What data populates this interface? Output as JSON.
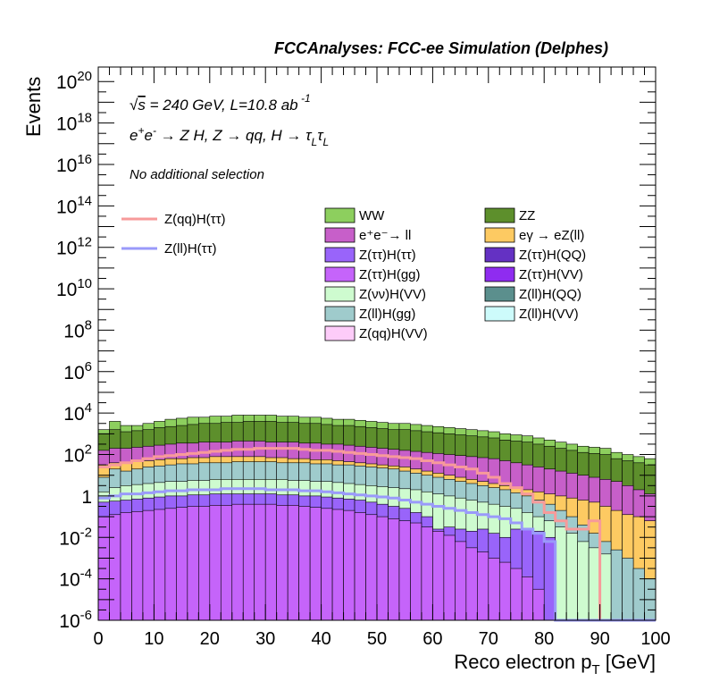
{
  "header": {
    "experiment": "FCCAnalyses: FCC-ee Simulation (Delphes)"
  },
  "annotations": {
    "energy": "√s = 240 GeV, L=10.8 ab⁻¹",
    "process": "e⁺e⁻ → Z H, Z → qq, H → τLτL",
    "selection": "No additional selection"
  },
  "colors": {
    "WW": "#8dcf5e",
    "ZZ": "#5d8f2c",
    "ee_ll": "#c75fc9",
    "egamma": "#fdca62",
    "Ztautau_Htautau": "#9964fa",
    "Ztautau_HQQ": "#6431c3",
    "Ztautau_Hgg": "#c564fa",
    "Ztautau_HVV": "#8f2cf0",
    "Znunu_HVV": "#cefbcf",
    "Zll_HQQ": "#5b8f8d",
    "Zll_Hgg": "#9fcbcc",
    "Zll_HVV": "#cdfbfb",
    "Zqq_HVV": "#fdccf9",
    "sig_qq": "#f79a9a",
    "sig_ll": "#9a9afa"
  },
  "chart_data": {
    "type": "area",
    "title": "FCCAnalyses: FCC-ee Simulation (Delphes)",
    "xlabel": "Reco electron p_T [GeV]",
    "ylabel": "Events",
    "xlim": [
      0,
      100
    ],
    "ylim_log10": [
      -6,
      20.7
    ],
    "log_y": true,
    "x_ticks": [
      "0",
      "10",
      "20",
      "30",
      "40",
      "50",
      "60",
      "70",
      "80",
      "90",
      "100"
    ],
    "y_ticks": [
      "10^-6",
      "10^-4",
      "10^-2",
      "1",
      "10^2",
      "10^4",
      "10^6",
      "10^8",
      "10^10",
      "10^12",
      "10^14",
      "10^16",
      "10^18",
      "10^20"
    ],
    "bin_edges": [
      0,
      2,
      4,
      6,
      8,
      10,
      12,
      14,
      16,
      18,
      20,
      22,
      24,
      26,
      28,
      30,
      32,
      34,
      36,
      38,
      40,
      42,
      44,
      46,
      48,
      50,
      52,
      54,
      56,
      58,
      60,
      62,
      64,
      66,
      68,
      70,
      72,
      74,
      76,
      78,
      80,
      82,
      84,
      86,
      88,
      90,
      92,
      94,
      96,
      98,
      100
    ],
    "stacked_total_log10": [
      [
        3.2,
        3.6,
        3.4,
        3.4,
        3.5,
        3.6,
        3.7,
        3.75,
        3.8,
        3.8,
        3.85,
        3.85,
        3.9,
        3.9,
        3.9,
        3.9,
        3.85,
        3.85,
        3.8,
        3.8,
        3.75,
        3.7,
        3.7,
        3.65,
        3.6,
        3.55,
        3.5,
        3.5,
        3.45,
        3.4,
        3.35,
        3.3,
        3.25,
        3.2,
        3.15,
        3.1,
        3.0,
        2.95,
        2.9,
        2.8,
        2.7,
        2.6,
        2.5,
        2.4,
        2.35,
        2.3,
        2.1,
        2.0,
        1.9,
        1.8
      ]
    ],
    "stack_order": [
      "Z(qq)H(VV)",
      "Z(ll)H(VV)",
      "Z(ll)H(gg)",
      "Z(ll)H(QQ)",
      "Z(νν)H(VV)",
      "Z(ττ)H(VV)",
      "Z(ττ)H(gg)",
      "Z(ττ)H(QQ)",
      "Z(ττ)H(ττ)",
      "eγ → eZ(ll)",
      "e⁺e⁻→ ll",
      "ZZ",
      "WW"
    ],
    "series": [
      {
        "name": "Z(ττ)H(gg)",
        "role": "stack",
        "log10": [
          -1.0,
          -0.9,
          -0.8,
          -0.75,
          -0.7,
          -0.65,
          -0.6,
          -0.55,
          -0.5,
          -0.5,
          -0.45,
          -0.45,
          -0.4,
          -0.4,
          -0.4,
          -0.4,
          -0.45,
          -0.45,
          -0.5,
          -0.55,
          -0.6,
          -0.65,
          -0.7,
          -0.8,
          -0.9,
          -1.0,
          -1.1,
          -1.2,
          -1.3,
          -1.5,
          -1.7,
          -1.9,
          -2.2,
          -2.5,
          -2.7,
          -3.0,
          -3.2,
          -3.5,
          -3.9,
          -4.5,
          -6,
          -6,
          -6,
          -6,
          -6,
          -6,
          -6,
          -6,
          -6,
          -6
        ]
      },
      {
        "name": "Z(ττ)H(ττ)",
        "role": "stack",
        "log10": [
          -0.3,
          -0.25,
          -0.2,
          -0.15,
          -0.1,
          -0.05,
          0.0,
          0.0,
          0.05,
          0.05,
          0.1,
          0.1,
          0.1,
          0.1,
          0.1,
          0.1,
          0.05,
          0.05,
          0.0,
          0.0,
          -0.05,
          -0.1,
          -0.15,
          -0.2,
          -0.3,
          -0.4,
          -0.5,
          -0.6,
          -0.8,
          -1.0,
          -1.6,
          -1.5,
          -1.6,
          -1.7,
          -1.6,
          -1.8,
          -2.0,
          -1.6,
          -1.6,
          -1.7,
          -2.0,
          -6,
          -6,
          -6,
          -6,
          -6,
          -6,
          -6,
          -6,
          -6
        ]
      },
      {
        "name": "Z(νν)H(VV)",
        "role": "stack",
        "log10": [
          0.2,
          0.4,
          0.5,
          0.55,
          0.6,
          0.65,
          0.7,
          0.7,
          0.75,
          0.75,
          0.8,
          0.8,
          0.8,
          0.8,
          0.8,
          0.8,
          0.8,
          0.75,
          0.75,
          0.7,
          0.7,
          0.65,
          0.6,
          0.55,
          0.5,
          0.45,
          0.4,
          0.35,
          0.3,
          0.2,
          0.1,
          0.0,
          -0.1,
          -0.2,
          -0.3,
          -0.4,
          -0.5,
          -0.6,
          -0.8,
          -1.0,
          -1.2,
          -1.5,
          -1.8,
          -2.2,
          -2.5,
          -2.8,
          -6,
          -6,
          -6,
          -6
        ]
      },
      {
        "name": "Z(ll)H(gg)",
        "role": "stack",
        "log10": [
          0.9,
          1.3,
          1.2,
          1.3,
          1.4,
          1.45,
          1.5,
          1.55,
          1.55,
          1.6,
          1.6,
          1.6,
          1.65,
          1.65,
          1.65,
          1.65,
          1.6,
          1.6,
          1.6,
          1.55,
          1.55,
          1.5,
          1.5,
          1.45,
          1.4,
          1.35,
          1.3,
          1.2,
          1.1,
          1.0,
          0.9,
          0.8,
          0.7,
          0.6,
          0.5,
          0.4,
          0.3,
          0.15,
          0.0,
          -0.2,
          -0.4,
          -0.7,
          -1.0,
          -1.4,
          -1.8,
          -2.2,
          -2.6,
          -3.0,
          -3.5,
          -4.0
        ]
      },
      {
        "name": "eγ → eZ(ll)",
        "role": "stack",
        "log10": [
          1.5,
          1.6,
          1.6,
          1.65,
          1.7,
          1.75,
          1.8,
          1.8,
          1.85,
          1.85,
          1.9,
          1.9,
          1.9,
          1.9,
          1.9,
          1.85,
          1.85,
          1.8,
          1.8,
          1.75,
          1.75,
          1.7,
          1.65,
          1.6,
          1.55,
          1.5,
          1.45,
          1.4,
          1.3,
          1.2,
          1.1,
          1.0,
          0.9,
          0.8,
          0.7,
          0.6,
          0.5,
          0.4,
          0.3,
          0.2,
          0.1,
          0.0,
          -0.1,
          -0.2,
          -0.3,
          -0.5,
          -0.7,
          -0.9,
          -1.0,
          -1.2
        ]
      },
      {
        "name": "e⁺e⁻→ ll",
        "role": "stack",
        "log10": [
          2.2,
          2.3,
          2.3,
          2.35,
          2.4,
          2.45,
          2.5,
          2.55,
          2.55,
          2.6,
          2.6,
          2.6,
          2.65,
          2.65,
          2.65,
          2.6,
          2.6,
          2.6,
          2.55,
          2.55,
          2.5,
          2.5,
          2.45,
          2.4,
          2.35,
          2.3,
          2.25,
          2.2,
          2.15,
          2.1,
          2.05,
          2.0,
          1.95,
          1.9,
          1.85,
          1.8,
          1.7,
          1.6,
          1.5,
          1.4,
          1.3,
          1.2,
          1.1,
          1.0,
          0.9,
          0.8,
          0.7,
          0.5,
          0.3,
          0.1
        ]
      },
      {
        "name": "ZZ",
        "role": "stack",
        "log10": [
          3.0,
          3.2,
          3.1,
          3.15,
          3.2,
          3.3,
          3.35,
          3.4,
          3.45,
          3.5,
          3.5,
          3.55,
          3.55,
          3.6,
          3.6,
          3.6,
          3.55,
          3.55,
          3.5,
          3.5,
          3.45,
          3.4,
          3.4,
          3.35,
          3.3,
          3.25,
          3.2,
          3.2,
          3.15,
          3.1,
          3.05,
          3.0,
          2.95,
          2.9,
          2.85,
          2.8,
          2.7,
          2.65,
          2.6,
          2.5,
          2.4,
          2.3,
          2.2,
          2.1,
          2.05,
          2.0,
          1.8,
          1.7,
          1.6,
          1.5
        ]
      },
      {
        "name": "Z(qq)H(ττ)",
        "role": "signal",
        "log10": [
          1.4,
          1.5,
          1.6,
          1.7,
          1.8,
          1.9,
          1.95,
          2.0,
          2.05,
          2.1,
          2.15,
          2.2,
          2.25,
          2.25,
          2.3,
          2.3,
          2.3,
          2.3,
          2.25,
          2.2,
          2.2,
          2.15,
          2.1,
          2.05,
          2.0,
          1.95,
          1.9,
          1.85,
          1.8,
          1.7,
          1.6,
          1.5,
          1.4,
          1.3,
          1.1,
          0.9,
          0.6,
          0.4,
          0.1,
          -0.3,
          -0.8,
          -1.2,
          -1.6,
          -1.6,
          -1.2,
          -6,
          -6,
          -6,
          -6,
          -6
        ]
      },
      {
        "name": "Z(ll)H(ττ)",
        "role": "signal",
        "log10": [
          -0.1,
          0.0,
          0.1,
          0.1,
          0.15,
          0.2,
          0.25,
          0.25,
          0.3,
          0.3,
          0.3,
          0.35,
          0.35,
          0.35,
          0.35,
          0.3,
          0.3,
          0.3,
          0.25,
          0.25,
          0.2,
          0.15,
          0.1,
          0.05,
          0.0,
          -0.05,
          -0.1,
          -0.2,
          -0.3,
          -0.4,
          -0.5,
          -0.6,
          -0.7,
          -0.8,
          -0.9,
          -1.0,
          -1.1,
          -1.3,
          -1.6,
          -1.8,
          -2.2,
          -6,
          -6,
          -6,
          -6,
          -6,
          -6,
          -6,
          -6,
          -6
        ]
      }
    ],
    "legend": {
      "left": [
        "Z(qq)H(ττ)",
        "Z(ll)H(ττ)"
      ],
      "col1": [
        "WW",
        "e⁺e⁻→ ll",
        "Z(ττ)H(ττ)",
        "Z(ττ)H(gg)",
        "Z(νν)H(VV)",
        "Z(ll)H(gg)",
        "Z(qq)H(VV)"
      ],
      "col2": [
        "ZZ",
        "eγ → eZ(ll)",
        "Z(ττ)H(QQ)",
        "Z(ττ)H(VV)",
        "Z(ll)H(QQ)",
        "Z(ll)H(VV)"
      ]
    }
  }
}
